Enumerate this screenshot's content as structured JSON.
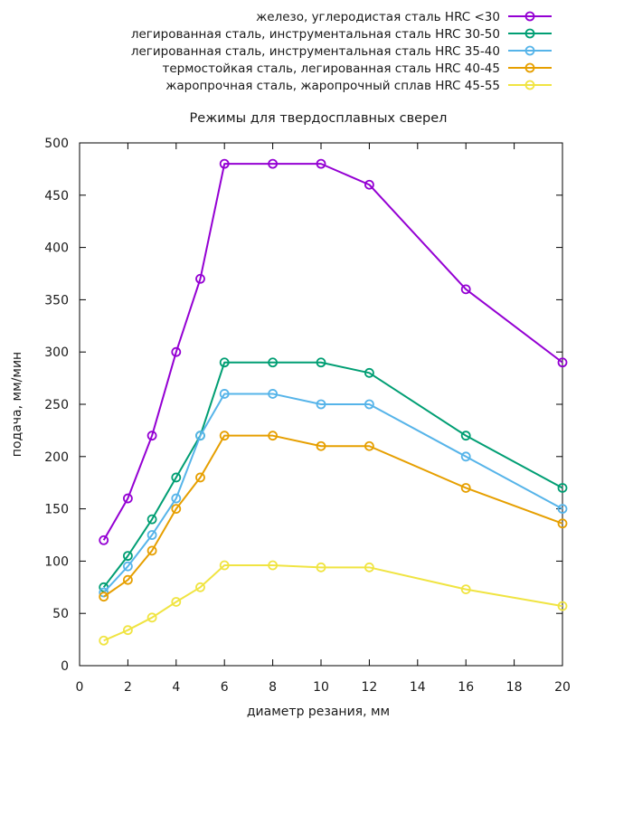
{
  "chart_data": {
    "type": "line",
    "title": "Режимы для твердосплавных сверел",
    "xlabel": "диаметр резания, мм",
    "ylabel": "подача, мм/мин",
    "xlim": [
      0,
      20
    ],
    "ylim": [
      0,
      500
    ],
    "x_ticks": [
      0,
      2,
      4,
      6,
      8,
      10,
      12,
      14,
      16,
      18,
      20
    ],
    "y_ticks": [
      0,
      50,
      100,
      150,
      200,
      250,
      300,
      350,
      400,
      450,
      500
    ],
    "grid": false,
    "legend_position": "top-right",
    "x": [
      1,
      2,
      3,
      4,
      5,
      6,
      8,
      10,
      12,
      16,
      20
    ],
    "series": [
      {
        "name": "железо, углеродистая сталь HRC <30",
        "color": "#9400d3",
        "values": [
          120,
          160,
          220,
          300,
          370,
          480,
          480,
          480,
          460,
          360,
          290
        ]
      },
      {
        "name": "легированная сталь, инструментальная сталь HRC 30-50",
        "color": "#009e73",
        "values": [
          75,
          105,
          140,
          180,
          220,
          290,
          290,
          290,
          280,
          220,
          170
        ]
      },
      {
        "name": "легированная сталь, инструментальная сталь HRC 35-40",
        "color": "#56b4e9",
        "values": [
          70,
          95,
          125,
          160,
          220,
          260,
          260,
          250,
          250,
          200,
          150
        ]
      },
      {
        "name": "термостойкая сталь, легированная сталь HRC 40-45",
        "color": "#e69f00",
        "values": [
          66,
          82,
          110,
          150,
          180,
          220,
          220,
          210,
          210,
          170,
          136
        ]
      },
      {
        "name": "жаропрочная сталь, жаропрочный сплав HRC 45-55",
        "color": "#f0e442",
        "values": [
          24,
          34,
          46,
          61,
          75,
          96,
          96,
          94,
          94,
          73,
          57
        ]
      }
    ]
  }
}
